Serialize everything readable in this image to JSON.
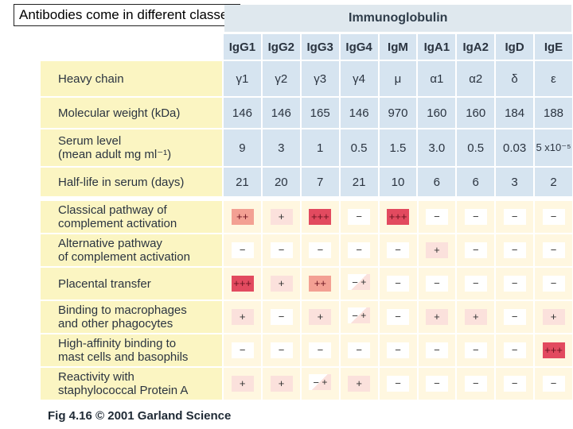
{
  "slide_title": "Antibodies come in different classes",
  "header_label": "Immunoglobulin",
  "columns": [
    "IgG1",
    "IgG2",
    "IgG3",
    "IgG4",
    "IgM",
    "IgA1",
    "IgA2",
    "IgD",
    "IgE"
  ],
  "property_rows": [
    {
      "label": "Heavy chain",
      "values": [
        "γ1",
        "γ2",
        "γ3",
        "γ4",
        "μ",
        "α1",
        "α2",
        "δ",
        "ε"
      ]
    },
    {
      "label": "Molecular weight (kDa)",
      "values": [
        "146",
        "146",
        "165",
        "146",
        "970",
        "160",
        "160",
        "184",
        "188"
      ]
    },
    {
      "label": "Serum level\n(mean adult mg ml⁻¹)",
      "values": [
        "9",
        "3",
        "1",
        "0.5",
        "1.5",
        "3.0",
        "0.5",
        "0.03",
        "5 x10⁻⁵"
      ]
    },
    {
      "label": "Half-life in serum (days)",
      "values": [
        "21",
        "20",
        "7",
        "21",
        "10",
        "6",
        "6",
        "3",
        "2"
      ]
    }
  ],
  "activity_rows": [
    {
      "label": "Classical pathway of\ncomplement activation",
      "values": [
        "++",
        "+",
        "+++",
        "−",
        "+++",
        "−",
        "−",
        "−",
        "−"
      ],
      "shade": [
        "med",
        "light",
        "dark",
        "",
        "dark",
        "",
        "",
        "",
        ""
      ]
    },
    {
      "label": "Alternative pathway\nof complement activation",
      "values": [
        "−",
        "−",
        "−",
        "−",
        "−",
        "+",
        "−",
        "−",
        "−"
      ],
      "shade": [
        "",
        "",
        "",
        "",
        "",
        "light",
        "",
        "",
        ""
      ]
    },
    {
      "label": "Placental transfer",
      "values": [
        "+++",
        "+",
        "++",
        "−/+",
        "−",
        "−",
        "−",
        "−",
        "−"
      ],
      "shade": [
        "dark",
        "light",
        "med",
        "",
        "",
        "",
        "",
        "",
        ""
      ]
    },
    {
      "label": "Binding to macrophages\nand other phagocytes",
      "values": [
        "+",
        "−",
        "+",
        "−/+",
        "−",
        "+",
        "+",
        "−",
        "+"
      ],
      "shade": [
        "light",
        "",
        "light",
        "",
        "",
        "light",
        "light",
        "",
        "light"
      ]
    },
    {
      "label": "High-affinity binding to\nmast cells and basophils",
      "values": [
        "−",
        "−",
        "−",
        "−",
        "−",
        "−",
        "−",
        "−",
        "+++"
      ],
      "shade": [
        "",
        "",
        "",
        "",
        "",
        "",
        "",
        "",
        "dark"
      ]
    },
    {
      "label": "Reactivity with\nstaphylococcal Protein A",
      "values": [
        "+",
        "+",
        "−/+",
        "+",
        "−",
        "−",
        "−",
        "−",
        "−"
      ],
      "shade": [
        "light",
        "light",
        "",
        "light",
        "",
        "",
        "",
        "",
        ""
      ]
    }
  ],
  "footer": "Fig 4.16  © 2001 Garland Science"
}
